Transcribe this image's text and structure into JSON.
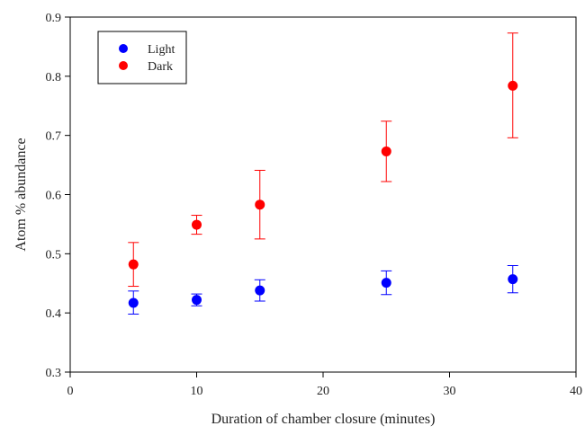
{
  "chart_data": {
    "type": "scatter",
    "title": "",
    "xlabel": "Duration of chamber closure (minutes)",
    "ylabel": "Atom % abundance",
    "xlim": [
      0,
      40
    ],
    "ylim": [
      0.3,
      0.9
    ],
    "x_ticks": [
      0,
      10,
      20,
      30,
      40
    ],
    "y_ticks": [
      0.3,
      0.4,
      0.5,
      0.6,
      0.7,
      0.8,
      0.9
    ],
    "x_tick_labels": [
      "0",
      "10",
      "20",
      "30",
      "40"
    ],
    "y_tick_labels": [
      "0.3",
      "0.4",
      "0.5",
      "0.6",
      "0.7",
      "0.8",
      "0.9"
    ],
    "grid": false,
    "legend_position": "top-left",
    "series": [
      {
        "name": "Light",
        "color": "#0000ff",
        "x": [
          5,
          10,
          15,
          25,
          35
        ],
        "y": [
          0.417,
          0.422,
          0.438,
          0.451,
          0.457
        ],
        "error_low": [
          0.398,
          0.412,
          0.42,
          0.431,
          0.434
        ],
        "error_high": [
          0.437,
          0.432,
          0.456,
          0.471,
          0.48
        ]
      },
      {
        "name": "Dark",
        "color": "#ff0000",
        "x": [
          5,
          10,
          15,
          25,
          35
        ],
        "y": [
          0.482,
          0.549,
          0.583,
          0.673,
          0.784
        ],
        "error_low": [
          0.445,
          0.533,
          0.525,
          0.622,
          0.696
        ],
        "error_high": [
          0.519,
          0.565,
          0.641,
          0.724,
          0.873
        ]
      }
    ]
  }
}
